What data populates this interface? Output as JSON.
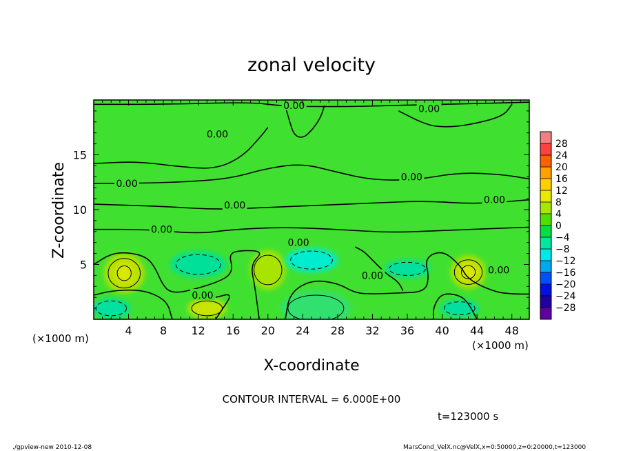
{
  "chart_data": {
    "type": "heatmap",
    "title": "zonal velocity",
    "xlabel": "X-coordinate",
    "ylabel": "Z-coordinate",
    "x_unit": "(×1000 m)",
    "y_unit": "(×1000 m)",
    "xlim": [
      0,
      50
    ],
    "ylim": [
      0,
      20
    ],
    "x_ticks": [
      "4",
      "8",
      "12",
      "16",
      "20",
      "24",
      "28",
      "32",
      "36",
      "40",
      "44",
      "48"
    ],
    "y_ticks": [
      "5",
      "10",
      "15"
    ],
    "colorbar": {
      "levels": [
        "28",
        "24",
        "20",
        "16",
        "12",
        "8",
        "4",
        "0",
        "−4",
        "−8",
        "−12",
        "−16",
        "−20",
        "−24",
        "−28"
      ],
      "colors": [
        "#f08080",
        "#ff4040",
        "#ff6000",
        "#ffa000",
        "#ffd000",
        "#e8e800",
        "#a8e800",
        "#50e000",
        "#00e040",
        "#00e8a0",
        "#00e8e8",
        "#00a8f0",
        "#0050ff",
        "#0010e0",
        "#2000a0",
        "#6000a0"
      ]
    },
    "contour_labels": [
      "0.00",
      "0.00",
      "0.00",
      "0.00",
      "0.00",
      "0.00",
      "0.00",
      "0.00",
      "0.00",
      "0.00",
      "0.00",
      "0.00"
    ],
    "contour_interval_text": "CONTOUR INTERVAL = 6.000E+00",
    "time_text": "t=123000 s",
    "footer_left": "./gpview-new  2010-12-08",
    "footer_right": "MarsCond_VelX.nc@VelX,x=0:50000,z=0:20000,t=123000",
    "blobs": [
      {
        "x": 3.5,
        "z": 4.2,
        "rx": 2.3,
        "rz": 1.8,
        "color": "#b8e000",
        "dashed": false
      },
      {
        "x": 3.5,
        "z": 4.2,
        "rx": 1.0,
        "rz": 0.9,
        "color": "#d8e800",
        "dashed": false
      },
      {
        "x": 13.0,
        "z": 1.0,
        "rx": 2.2,
        "rz": 0.9,
        "color": "#c8e400",
        "dashed": false
      },
      {
        "x": 20.0,
        "z": 4.5,
        "rx": 2.0,
        "rz": 1.8,
        "color": "#a8e400",
        "dashed": false
      },
      {
        "x": 43.0,
        "z": 4.3,
        "rx": 2.0,
        "rz": 1.5,
        "color": "#b8e000",
        "dashed": false
      },
      {
        "x": 43.0,
        "z": 4.3,
        "rx": 1.0,
        "rz": 0.8,
        "color": "#d8e800",
        "dashed": false
      },
      {
        "x": 12.0,
        "z": 5.0,
        "rx": 3.2,
        "rz": 1.2,
        "color": "#00e098",
        "dashed": true
      },
      {
        "x": 25.0,
        "z": 5.4,
        "rx": 3.0,
        "rz": 1.1,
        "color": "#00ecd0",
        "dashed": true
      },
      {
        "x": 36.0,
        "z": 4.6,
        "rx": 2.6,
        "rz": 0.8,
        "color": "#00e0a0",
        "dashed": true
      },
      {
        "x": 2.0,
        "z": 1.0,
        "rx": 2.2,
        "rz": 0.9,
        "color": "#00e0a0",
        "dashed": true
      },
      {
        "x": 42.0,
        "z": 1.0,
        "rx": 2.2,
        "rz": 0.8,
        "color": "#00e0a0",
        "dashed": true
      },
      {
        "x": 25.5,
        "z": 1.0,
        "rx": 4.0,
        "rz": 1.6,
        "color": "#30e070",
        "dashed": false
      }
    ],
    "zero_contours": [
      [
        [
          0,
          19.6
        ],
        [
          8,
          19.6
        ],
        [
          18,
          19.8
        ],
        [
          21,
          19.5
        ],
        [
          24,
          19.4
        ],
        [
          30,
          19.4
        ],
        [
          34,
          19.5
        ],
        [
          40,
          19.6
        ],
        [
          50,
          19.8
        ]
      ],
      [
        [
          0,
          14.2
        ],
        [
          5,
          14.4
        ],
        [
          10,
          13.9
        ],
        [
          14,
          13.7
        ],
        [
          17,
          14.8
        ],
        [
          19,
          16.5
        ],
        [
          20,
          17.5
        ]
      ],
      [
        [
          0,
          12.4
        ],
        [
          6,
          12.4
        ],
        [
          12,
          12.6
        ],
        [
          16,
          12.9
        ],
        [
          20,
          13.8
        ],
        [
          24,
          14.2
        ],
        [
          28,
          13.4
        ],
        [
          32,
          12.7
        ],
        [
          37,
          12.7
        ],
        [
          42,
          13.4
        ],
        [
          47,
          13.2
        ],
        [
          50,
          12.8
        ]
      ],
      [
        [
          0,
          10.5
        ],
        [
          8,
          10.3
        ],
        [
          14,
          10.0
        ],
        [
          20,
          10.2
        ],
        [
          26,
          10.4
        ],
        [
          32,
          10.6
        ],
        [
          38,
          10.8
        ],
        [
          44,
          10.5
        ],
        [
          50,
          10.9
        ]
      ],
      [
        [
          0,
          8.2
        ],
        [
          6,
          8.2
        ],
        [
          12,
          7.8
        ],
        [
          16,
          8.2
        ],
        [
          22,
          8.4
        ],
        [
          28,
          8.2
        ],
        [
          34,
          7.9
        ],
        [
          40,
          8.1
        ],
        [
          50,
          8.4
        ]
      ],
      [
        [
          26.5,
          19.5
        ],
        [
          26,
          18.3
        ],
        [
          25,
          17.2
        ],
        [
          24,
          16.5
        ],
        [
          23,
          16.8
        ],
        [
          22.5,
          18.0
        ],
        [
          22,
          19.4
        ]
      ],
      [
        [
          35,
          19.0
        ],
        [
          38,
          17.8
        ],
        [
          40,
          17.5
        ],
        [
          43,
          17.7
        ],
        [
          47,
          18.5
        ],
        [
          48,
          19.6
        ]
      ],
      [
        [
          0,
          5.0
        ],
        [
          2,
          6.0
        ],
        [
          4,
          6.1
        ],
        [
          6,
          5.7
        ],
        [
          7,
          4.8
        ],
        [
          8,
          3.0
        ],
        [
          9,
          2.4
        ],
        [
          11,
          2.6
        ],
        [
          15,
          3.6
        ],
        [
          16,
          4.5
        ],
        [
          15.5,
          6.0
        ],
        [
          17,
          6.3
        ],
        [
          19.5,
          6.2
        ],
        [
          18,
          5.0
        ],
        [
          18.5,
          3.0
        ],
        [
          19,
          0
        ]
      ],
      [
        [
          22,
          0
        ],
        [
          22.5,
          2.4
        ],
        [
          25,
          3.6
        ],
        [
          28,
          3.3
        ],
        [
          30,
          2.4
        ],
        [
          32,
          2.3
        ],
        [
          35,
          2.4
        ],
        [
          38,
          2.5
        ],
        [
          38.5,
          3.8
        ],
        [
          38,
          5.6
        ],
        [
          40,
          6.3
        ],
        [
          42,
          5.0
        ],
        [
          43,
          3.6
        ],
        [
          46,
          2.5
        ],
        [
          48,
          2.3
        ],
        [
          50,
          2.3
        ]
      ],
      [
        [
          0,
          2.2
        ],
        [
          2,
          2.6
        ],
        [
          5,
          2.7
        ],
        [
          7,
          2.3
        ],
        [
          8.5,
          1.5
        ],
        [
          9,
          0
        ]
      ],
      [
        [
          30,
          6.6
        ],
        [
          31,
          6.2
        ],
        [
          32,
          5.4
        ],
        [
          33.5,
          4.2
        ],
        [
          35,
          3.4
        ],
        [
          35.5,
          2.6
        ]
      ],
      [
        [
          14,
          2.0
        ],
        [
          16,
          2.4
        ],
        [
          14.5,
          0.6
        ],
        [
          14,
          0
        ]
      ],
      [
        [
          44,
          0
        ],
        [
          43,
          1.5
        ],
        [
          42,
          2.2
        ],
        [
          40,
          2.4
        ],
        [
          39,
          1.2
        ],
        [
          39,
          0
        ]
      ]
    ],
    "label_positions": [
      [
        23,
        19.5
      ],
      [
        38.5,
        19.2
      ],
      [
        14.2,
        16.9
      ],
      [
        36.5,
        13.0
      ],
      [
        3.8,
        12.4
      ],
      [
        16.2,
        10.4
      ],
      [
        7.8,
        8.2
      ],
      [
        23.5,
        7.0
      ],
      [
        32,
        4.0
      ],
      [
        46,
        10.9
      ],
      [
        46.5,
        4.5
      ],
      [
        12.5,
        2.2
      ]
    ]
  }
}
